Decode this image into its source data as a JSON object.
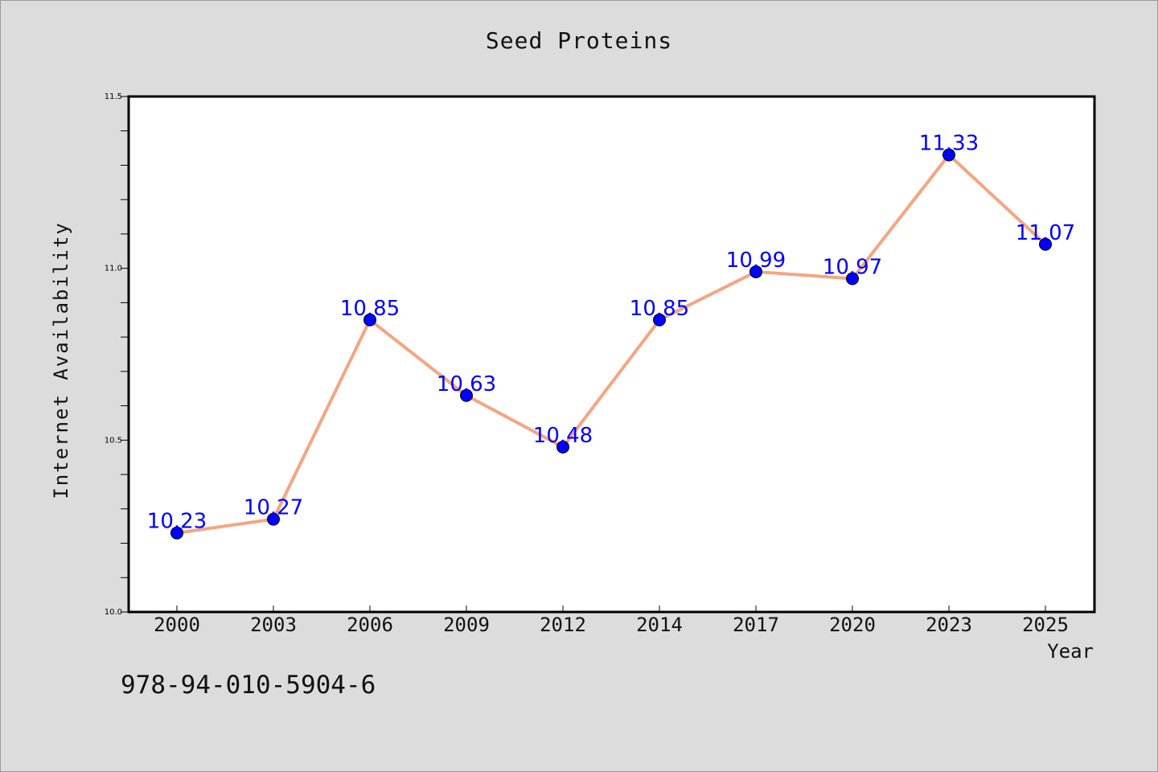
{
  "chart_data": {
    "type": "line",
    "title": "Seed Proteins",
    "xlabel": "Year",
    "ylabel": "Internet Availability",
    "categories": [
      "2000",
      "2003",
      "2006",
      "2009",
      "2012",
      "2014",
      "2017",
      "2020",
      "2023",
      "2025"
    ],
    "series": [
      {
        "values": [
          10.23,
          10.27,
          10.85,
          10.63,
          10.48,
          10.85,
          10.99,
          10.97,
          11.33,
          11.07
        ],
        "data_labels": [
          "10.23",
          "10.27",
          "10.85",
          "10.63",
          "10.48",
          "10.85",
          "10.99",
          "10.97",
          "11.33",
          "11.07"
        ],
        "line_color": "#f4a582",
        "marker_color": "#0000ff"
      }
    ],
    "ylim": [
      10.0,
      11.5
    ],
    "yticks": [
      {
        "value": 10.0,
        "label": "10.0"
      },
      {
        "value": 10.5,
        "label": "10.5"
      },
      {
        "value": 11.0,
        "label": "11.0"
      },
      {
        "value": 11.5,
        "label": "11.5"
      }
    ],
    "y_minor_step": 0.1,
    "grid": false,
    "legend": "none"
  },
  "footer": {
    "isbn": "978-94-010-5904-6"
  },
  "colors": {
    "background": "#dcdcdc",
    "plot_background": "#ffffff",
    "axis": "#000000",
    "line": "#f4a582",
    "marker": "#0000ff",
    "data_label": "#0000ff"
  }
}
